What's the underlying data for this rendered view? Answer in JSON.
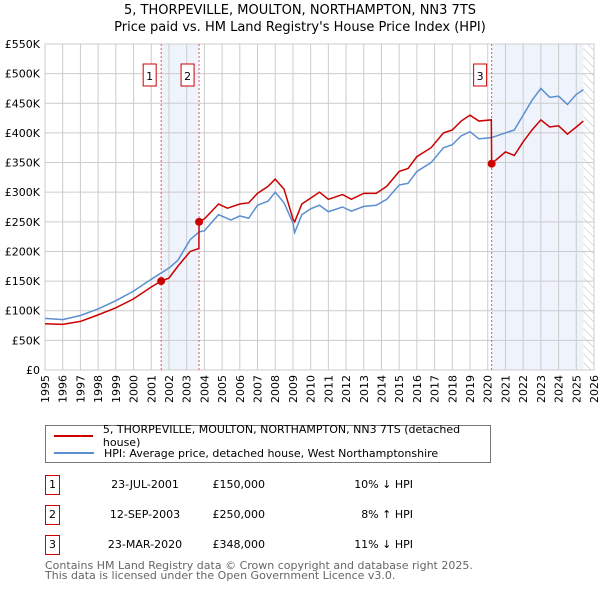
{
  "chart_data": {
    "type": "line",
    "title": "5, THORPEVILLE, MOULTON, NORTHAMPTON, NN3 7TS",
    "subtitle": "Price paid vs. HM Land Registry's House Price Index (HPI)",
    "xlim": [
      1995,
      2026
    ],
    "ylim": [
      0,
      550000
    ],
    "x_ticks": [
      "1995",
      "1996",
      "1997",
      "1998",
      "1999",
      "2000",
      "2001",
      "2002",
      "2003",
      "2004",
      "2005",
      "2006",
      "2007",
      "2008",
      "2009",
      "2010",
      "2011",
      "2012",
      "2013",
      "2014",
      "2015",
      "2016",
      "2017",
      "2018",
      "2019",
      "2020",
      "2021",
      "2022",
      "2023",
      "2024",
      "2025",
      "2026"
    ],
    "y_ticks": [
      "£0",
      "£50K",
      "£100K",
      "£150K",
      "£200K",
      "£250K",
      "£300K",
      "£350K",
      "£400K",
      "£450K",
      "£500K",
      "£550K"
    ],
    "grid": true,
    "series": [
      {
        "name": "5, THORPEVILLE, MOULTON, NORTHAMPTON, NN3 7TS (detached house)",
        "color": "#cc0000",
        "x": [
          1995,
          1996,
          1997,
          1998,
          1999,
          2000,
          2001,
          2001.56,
          2002,
          2002.5,
          2003.2,
          2003.69,
          2003.7,
          2004,
          2004.8,
          2005.3,
          2006,
          2006.5,
          2007,
          2007.6,
          2008,
          2008.5,
          2009,
          2009.1,
          2009.5,
          2010,
          2010.5,
          2011,
          2011.8,
          2012.3,
          2013,
          2013.7,
          2014.3,
          2015,
          2015.5,
          2016,
          2016.8,
          2017.5,
          2018,
          2018.5,
          2019,
          2019.5,
          2020.2,
          2020.22,
          2021,
          2021.5,
          2022,
          2022.5,
          2023,
          2023.5,
          2024,
          2024.5,
          2025,
          2025.4
        ],
        "y": [
          78,
          77,
          82,
          93,
          105,
          120,
          140,
          150,
          155,
          175,
          200,
          205,
          250,
          255,
          280,
          273,
          280,
          282,
          298,
          310,
          322,
          305,
          255,
          250,
          280,
          290,
          300,
          288,
          296,
          288,
          298,
          298,
          310,
          335,
          340,
          360,
          375,
          400,
          405,
          420,
          430,
          420,
          422,
          348,
          368,
          362,
          385,
          405,
          422,
          410,
          412,
          398,
          410,
          420
        ]
      },
      {
        "name": "HPI: Average price, detached house, West Northamptonshire",
        "color": "#5b8fd0",
        "x": [
          1995,
          1996,
          1997,
          1998,
          1999,
          2000,
          2001,
          2002,
          2002.5,
          2003.2,
          2003.7,
          2004,
          2004.8,
          2005.5,
          2006,
          2006.5,
          2007,
          2007.6,
          2008,
          2008.5,
          2009,
          2009.1,
          2009.5,
          2010,
          2010.5,
          2011,
          2011.8,
          2012.3,
          2013,
          2013.7,
          2014.3,
          2015,
          2015.5,
          2016,
          2016.8,
          2017.5,
          2018,
          2018.5,
          2019,
          2019.5,
          2020.2,
          2021,
          2021.5,
          2022,
          2022.5,
          2023,
          2023.5,
          2024,
          2024.5,
          2025,
          2025.4
        ],
        "y": [
          87,
          85,
          92,
          103,
          117,
          133,
          153,
          172,
          185,
          220,
          233,
          235,
          262,
          253,
          260,
          256,
          278,
          285,
          300,
          282,
          248,
          232,
          262,
          272,
          278,
          267,
          275,
          268,
          276,
          278,
          288,
          312,
          315,
          335,
          350,
          375,
          380,
          395,
          402,
          390,
          392,
          400,
          405,
          430,
          455,
          475,
          460,
          462,
          448,
          465,
          473
        ]
      }
    ],
    "y_units": "thousands GBP",
    "sales": [
      {
        "label": "1",
        "x": 2001.56,
        "y": 150,
        "date": "23-JUL-2001",
        "price": "£150,000",
        "hpi": "10% ↓ HPI"
      },
      {
        "label": "2",
        "x": 2003.7,
        "y": 250,
        "date": "12-SEP-2003",
        "price": "£250,000",
        "hpi": "8% ↑ HPI"
      },
      {
        "label": "3",
        "x": 2020.22,
        "y": 348,
        "date": "23-MAR-2020",
        "price": "£348,000",
        "hpi": "11% ↓ HPI"
      }
    ],
    "shaded_ranges": [
      [
        2001.56,
        2003.7
      ],
      [
        2020.22,
        2025.4
      ]
    ],
    "forecast_from": 2025.4
  },
  "footer": {
    "line1": "Contains HM Land Registry data © Crown copyright and database right 2025.",
    "line2": "This data is licensed under the Open Government Licence v3.0."
  }
}
